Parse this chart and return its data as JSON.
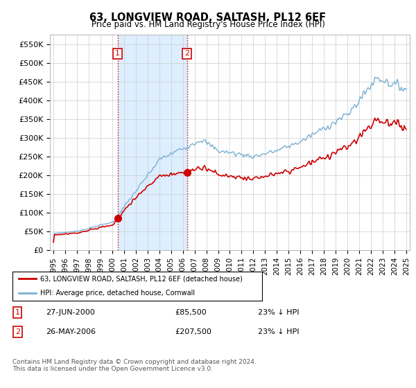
{
  "title": "63, LONGVIEW ROAD, SALTASH, PL12 6EF",
  "subtitle": "Price paid vs. HM Land Registry's House Price Index (HPI)",
  "property_label": "63, LONGVIEW ROAD, SALTASH, PL12 6EF (detached house)",
  "hpi_label": "HPI: Average price, detached house, Cornwall",
  "footnote": "Contains HM Land Registry data © Crown copyright and database right 2024.\nThis data is licensed under the Open Government Licence v3.0.",
  "sale1_date": "27-JUN-2000",
  "sale1_price": "£85,500",
  "sale1_note": "23% ↓ HPI",
  "sale2_date": "26-MAY-2006",
  "sale2_price": "£207,500",
  "sale2_note": "23% ↓ HPI",
  "sale1_x": 2000.49,
  "sale1_y": 85500,
  "sale2_x": 2006.38,
  "sale2_y": 207500,
  "ylim": [
    0,
    575000
  ],
  "xlim_left": 1994.7,
  "xlim_right": 2025.3,
  "red_color": "#cc0000",
  "blue_color": "#7ab0d4",
  "shade_color": "#ddeeff",
  "vline_color": "#cc0000",
  "grid_color": "#cccccc",
  "bg_color": "#ffffff",
  "plot_bg": "#ffffff",
  "sale1_vline_x": 2000.49,
  "sale2_vline_x": 2006.38,
  "yticks": [
    0,
    50000,
    100000,
    150000,
    200000,
    250000,
    300000,
    350000,
    400000,
    450000,
    500000,
    550000
  ],
  "ytick_labels": [
    "£0",
    "£50K",
    "£100K",
    "£150K",
    "£200K",
    "£250K",
    "£300K",
    "£350K",
    "£400K",
    "£450K",
    "£500K",
    "£550K"
  ],
  "xticks": [
    1995,
    1996,
    1997,
    1998,
    1999,
    2000,
    2001,
    2002,
    2003,
    2004,
    2005,
    2006,
    2007,
    2008,
    2009,
    2010,
    2011,
    2012,
    2013,
    2014,
    2015,
    2016,
    2017,
    2018,
    2019,
    2020,
    2021,
    2022,
    2023,
    2024,
    2025
  ]
}
